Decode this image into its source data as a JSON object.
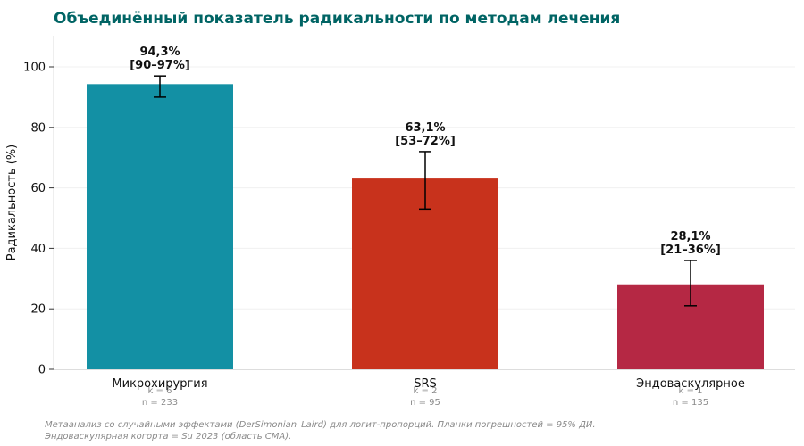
{
  "chart_data": {
    "type": "bar",
    "title": "Объединённый показатель радикальности по методам лечения",
    "title_color": "#006464",
    "ylabel": "Радикальность (%)",
    "ylim": [
      0,
      110
    ],
    "yticks": [
      0,
      20,
      40,
      60,
      80,
      100
    ],
    "grid": true,
    "categories": [
      "Микрохирургия",
      "SRS",
      "Эндоваскулярное"
    ],
    "category_subtitles": [
      [
        "k = 6",
        "n = 233"
      ],
      [
        "k = 2",
        "n = 95"
      ],
      [
        "k = 1",
        "n = 135"
      ]
    ],
    "values": [
      94.3,
      63.1,
      28.1
    ],
    "ci_low": [
      90,
      53,
      21
    ],
    "ci_high": [
      97,
      72,
      36
    ],
    "value_labels": [
      "94,3%",
      "63,1%",
      "28,1%"
    ],
    "ci_labels": [
      "[90–97%]",
      "[53–72%]",
      "[21–36%]"
    ],
    "colors": [
      "#1390a4",
      "#c8321c",
      "#b52844"
    ],
    "footnote": [
      "Метаанализ со случайными эффектами (DerSimonian–Laird) для логит-пропорций. Планки погрешностей = 95% ДИ.",
      "Эндоваскулярная когорта = Su 2023 (область СМА)."
    ]
  }
}
